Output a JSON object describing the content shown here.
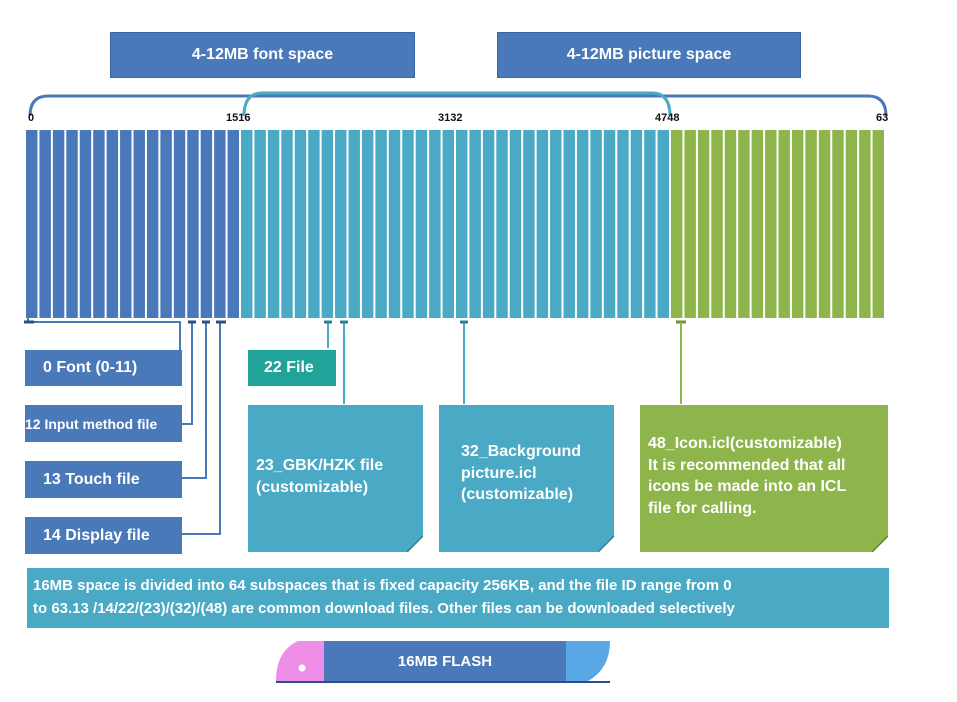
{
  "headers": {
    "font_space": "4-12MB font space",
    "picture_space": "4-12MB picture space"
  },
  "ticks": {
    "t0": "0",
    "t1": "1516",
    "t2": "3132",
    "t3": "4748",
    "t4": "63"
  },
  "left_labels": {
    "font": "0 Font (0-11)",
    "input_method": "12 Input method file",
    "touch": "13 Touch file",
    "display": "14 Display file"
  },
  "file22": "22 File",
  "cards": {
    "gbk": {
      "line1": "23_GBK/HZK file",
      "line2": "(customizable)"
    },
    "background": {
      "line1": "32_Background",
      "line2": "picture.icl",
      "line3": "(customizable)"
    },
    "icon": {
      "line1": "48_Icon.icl(customizable)",
      "line2": "It is recommended that all",
      "line3": "icons be made into an ICL",
      "line4": "file for calling."
    }
  },
  "info": {
    "line1": "16MB space is divided into 64 subspaces that is fixed capacity 256KB, and the file ID range from 0",
    "line2": "to 63.13 /14/22/(23)/(32)/(48) are common download files. Other files can be downloaded selectively"
  },
  "flash_label": "16MB FLASH",
  "colors": {
    "dark_blue": "#4a79b9",
    "light_blue": "#4aa9c4",
    "green": "#8db54c",
    "teal": "#22a39a",
    "pink": "#ee8ee8"
  }
}
